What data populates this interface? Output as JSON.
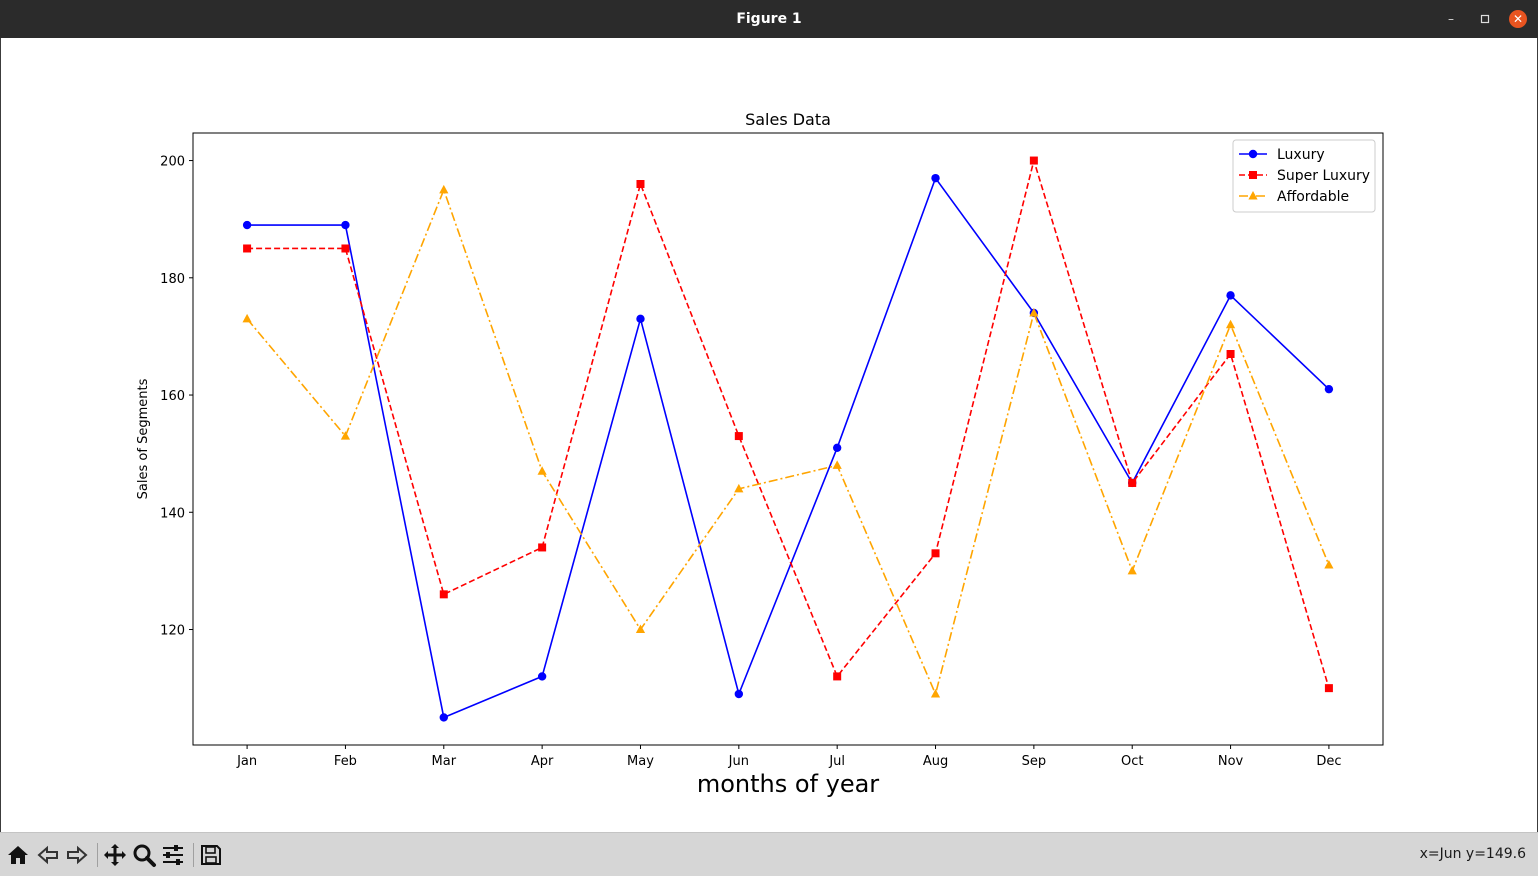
{
  "window": {
    "title": "Figure 1"
  },
  "toolbar": {
    "buttons": [
      {
        "name": "home-icon"
      },
      {
        "name": "back-icon"
      },
      {
        "name": "forward-icon"
      },
      {
        "name": "pan-icon"
      },
      {
        "name": "zoom-icon"
      },
      {
        "name": "configure-subplots-icon"
      },
      {
        "name": "save-icon"
      }
    ],
    "coordinates": "x=Jun y=149.6"
  },
  "chart_data": {
    "type": "line",
    "title": "Sales Data",
    "xlabel": "months of year",
    "ylabel": "Sales of Segments",
    "categories": [
      "Jan",
      "Feb",
      "Mar",
      "Apr",
      "May",
      "Jun",
      "Jul",
      "Aug",
      "Sep",
      "Oct",
      "Nov",
      "Dec"
    ],
    "ylim": [
      100.3,
      204.7
    ],
    "yticks": [
      120,
      140,
      160,
      180,
      200
    ],
    "grid": false,
    "legend_position": "top-right",
    "series": [
      {
        "name": "Luxury",
        "color": "#0000ff",
        "linestyle": "solid",
        "marker": "circle",
        "values": [
          189,
          189,
          105,
          112,
          173,
          109,
          151,
          197,
          174,
          145,
          177,
          161
        ]
      },
      {
        "name": "Super Luxury",
        "color": "#ff0000",
        "linestyle": "dashed",
        "marker": "square",
        "values": [
          185,
          185,
          126,
          134,
          196,
          153,
          112,
          133,
          200,
          145,
          167,
          110
        ]
      },
      {
        "name": "Affordable",
        "color": "#ffa500",
        "linestyle": "dashdot",
        "marker": "triangle",
        "values": [
          173,
          153,
          195,
          147,
          120,
          144,
          148,
          109,
          174,
          130,
          172,
          131
        ]
      }
    ]
  }
}
